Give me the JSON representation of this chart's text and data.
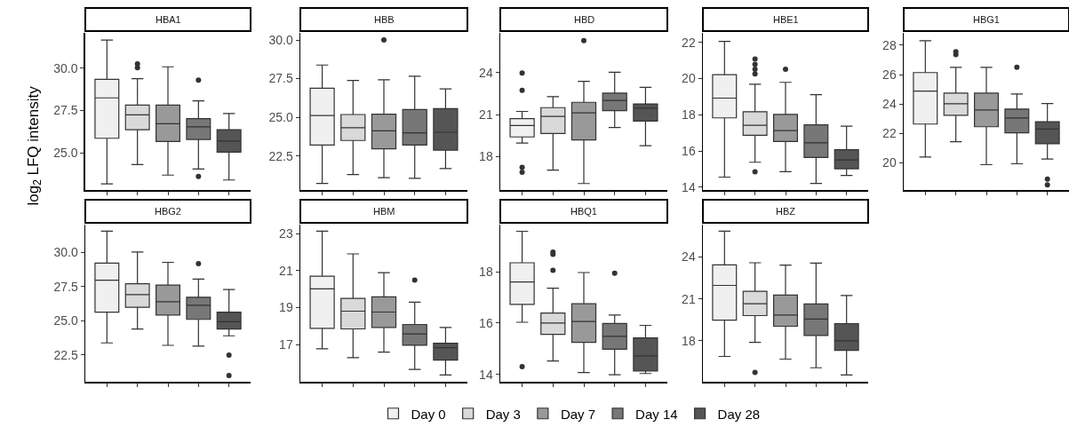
{
  "chart_data": [
    {
      "type": "box",
      "title": "HBA1",
      "ylabel": "log$_{2}$ LFQ intensity",
      "categories": [
        null
      ],
      "ylim": [
        22.8,
        32.1
      ],
      "yticks": [
        {
          "value": 25,
          "label": "25.0"
        },
        {
          "value": 27.5,
          "label": "27.5"
        },
        {
          "value": 30,
          "label": "30.0"
        }
      ],
      "series": [
        {
          "color": "#f0f0f0",
          "boxes": [
            {
              "low": 23.16,
              "q1": 25.86,
              "median": 28.25,
              "q3": 29.35,
              "high": 31.67
            }
          ]
        },
        {
          "color": "#d9d9d9",
          "boxes": [
            {
              "low": 24.3,
              "q1": 26.37,
              "median": 27.25,
              "q3": 27.82,
              "high": 29.39,
              "outliers": [
                30.26,
                30.04
              ]
            }
          ]
        },
        {
          "color": "#999999",
          "boxes": [
            {
              "low": 23.68,
              "q1": 25.67,
              "median": 26.72,
              "q3": 27.82,
              "high": 30.09
            }
          ]
        },
        {
          "color": "#777777",
          "boxes": [
            {
              "low": 24.04,
              "q1": 25.79,
              "median": 26.54,
              "q3": 27.02,
              "high": 28.07,
              "outliers": [
                29.3,
                23.6
              ]
            }
          ]
        },
        {
          "color": "#555555",
          "boxes": [
            {
              "low": 23.39,
              "q1": 25.04,
              "median": 25.7,
              "q3": 26.37,
              "high": 27.32
            }
          ]
        }
      ]
    },
    {
      "type": "box",
      "title": "HBB",
      "categories": [
        null
      ],
      "ylim": [
        20.3,
        30.46
      ],
      "yticks": [
        {
          "value": 22.5,
          "label": "22.5"
        },
        {
          "value": 25,
          "label": "25.0"
        },
        {
          "value": 27.5,
          "label": "27.5"
        },
        {
          "value": 30,
          "label": "30.0"
        }
      ],
      "series": [
        {
          "color": "#f0f0f0",
          "boxes": [
            {
              "low": 20.72,
              "q1": 23.21,
              "median": 25.12,
              "q3": 26.88,
              "high": 28.38
            }
          ]
        },
        {
          "color": "#d9d9d9",
          "boxes": [
            {
              "low": 21.3,
              "q1": 23.5,
              "median": 24.32,
              "q3": 25.18,
              "high": 27.38
            }
          ]
        },
        {
          "color": "#999999",
          "boxes": [
            {
              "low": 21.1,
              "q1": 22.96,
              "median": 24.13,
              "q3": 25.2,
              "high": 27.42,
              "outliers": [
                30.0
              ]
            }
          ]
        },
        {
          "color": "#777777",
          "boxes": [
            {
              "low": 21.05,
              "q1": 23.21,
              "median": 24.0,
              "q3": 25.5,
              "high": 27.65
            }
          ]
        },
        {
          "color": "#555555",
          "boxes": [
            {
              "low": 21.68,
              "q1": 22.87,
              "median": 24.03,
              "q3": 25.56,
              "high": 26.84
            }
          ]
        }
      ]
    },
    {
      "type": "box",
      "title": "HBD",
      "categories": [
        null
      ],
      "ylim": [
        15.63,
        26.83
      ],
      "yticks": [
        18,
        21,
        24
      ],
      "series": [
        {
          "color": "#f0f0f0",
          "boxes": [
            {
              "low": 18.97,
              "q1": 19.41,
              "median": 20.22,
              "q3": 20.71,
              "high": 21.23,
              "outliers": [
                23.96,
                22.74,
                17.25,
                16.89
              ]
            }
          ]
        },
        {
          "color": "#d9d9d9",
          "boxes": [
            {
              "low": 17.04,
              "q1": 19.66,
              "median": 20.87,
              "q3": 21.5,
              "high": 22.28
            }
          ]
        },
        {
          "color": "#999999",
          "boxes": [
            {
              "low": 16.09,
              "q1": 19.2,
              "median": 21.13,
              "q3": 21.88,
              "high": 23.37,
              "outliers": [
                26.27
              ]
            }
          ]
        },
        {
          "color": "#777777",
          "boxes": [
            {
              "low": 20.08,
              "q1": 21.29,
              "median": 22.01,
              "q3": 22.53,
              "high": 24.02
            }
          ]
        },
        {
          "color": "#555555",
          "boxes": [
            {
              "low": 18.78,
              "q1": 20.54,
              "median": 21.46,
              "q3": 21.76,
              "high": 22.95
            }
          ]
        }
      ]
    },
    {
      "type": "box",
      "title": "HBE1",
      "categories": [
        null
      ],
      "ylim": [
        13.85,
        22.52
      ],
      "yticks": [
        14,
        16,
        18,
        20,
        22
      ],
      "series": [
        {
          "color": "#f0f0f0",
          "boxes": [
            {
              "low": 14.56,
              "q1": 17.83,
              "median": 18.92,
              "q3": 20.21,
              "high": 22.05
            }
          ]
        },
        {
          "color": "#d9d9d9",
          "boxes": [
            {
              "low": 15.38,
              "q1": 16.87,
              "median": 17.42,
              "q3": 18.17,
              "high": 19.69,
              "outliers": [
                21.07,
                20.78,
                20.51,
                20.25,
                14.86
              ]
            }
          ]
        },
        {
          "color": "#999999",
          "boxes": [
            {
              "low": 14.86,
              "q1": 16.53,
              "median": 17.13,
              "q3": 18.02,
              "high": 19.79,
              "outliers": [
                20.51
              ]
            }
          ]
        },
        {
          "color": "#777777",
          "boxes": [
            {
              "low": 14.21,
              "q1": 15.64,
              "median": 16.45,
              "q3": 17.44,
              "high": 19.11
            }
          ]
        },
        {
          "color": "#555555",
          "boxes": [
            {
              "low": 14.65,
              "q1": 15.02,
              "median": 15.51,
              "q3": 16.07,
              "high": 17.37
            }
          ]
        }
      ]
    },
    {
      "type": "box",
      "title": "HBG1",
      "categories": [
        null
      ],
      "ylim": [
        18.16,
        28.84
      ],
      "yticks": [
        20,
        22,
        24,
        26,
        28
      ],
      "series": [
        {
          "color": "#f0f0f0",
          "boxes": [
            {
              "low": 20.4,
              "q1": 22.64,
              "median": 24.88,
              "q3": 26.14,
              "high": 28.3
            }
          ]
        },
        {
          "color": "#d9d9d9",
          "boxes": [
            {
              "low": 21.44,
              "q1": 23.24,
              "median": 24.02,
              "q3": 24.74,
              "high": 26.5,
              "outliers": [
                27.56,
                27.36
              ]
            }
          ]
        },
        {
          "color": "#999999",
          "boxes": [
            {
              "low": 19.88,
              "q1": 22.46,
              "median": 23.6,
              "q3": 24.74,
              "high": 26.5
            }
          ]
        },
        {
          "color": "#777777",
          "boxes": [
            {
              "low": 19.94,
              "q1": 22.04,
              "median": 23.06,
              "q3": 23.66,
              "high": 24.68,
              "outliers": [
                26.5
              ]
            }
          ]
        },
        {
          "color": "#555555",
          "boxes": [
            {
              "low": 20.26,
              "q1": 21.3,
              "median": 22.3,
              "q3": 22.8,
              "high": 24.04,
              "outliers": [
                18.9,
                18.5
              ]
            }
          ]
        }
      ]
    },
    {
      "type": "box",
      "title": "HBG2",
      "categories": [
        null
      ],
      "ylim": [
        20.55,
        32.04
      ],
      "yticks": [
        {
          "value": 22.5,
          "label": "22.5"
        },
        {
          "value": 25,
          "label": "25.0"
        },
        {
          "value": 27.5,
          "label": "27.5"
        },
        {
          "value": 30,
          "label": "30.0"
        }
      ],
      "series": [
        {
          "color": "#f0f0f0",
          "boxes": [
            {
              "low": 23.39,
              "q1": 25.64,
              "median": 27.98,
              "q3": 29.22,
              "high": 31.56
            }
          ]
        },
        {
          "color": "#d9d9d9",
          "boxes": [
            {
              "low": 24.41,
              "q1": 25.99,
              "median": 26.92,
              "q3": 27.72,
              "high": 30.04
            }
          ]
        },
        {
          "color": "#999999",
          "boxes": [
            {
              "low": 23.21,
              "q1": 25.43,
              "median": 26.4,
              "q3": 27.62,
              "high": 29.28
            }
          ]
        },
        {
          "color": "#777777",
          "boxes": [
            {
              "low": 23.15,
              "q1": 25.11,
              "median": 26.14,
              "q3": 26.73,
              "high": 28.05,
              "outliers": [
                29.18
              ]
            }
          ]
        },
        {
          "color": "#555555",
          "boxes": [
            {
              "low": 23.91,
              "q1": 24.41,
              "median": 24.94,
              "q3": 25.64,
              "high": 27.29,
              "outliers": [
                22.5,
                21.0
              ]
            }
          ]
        }
      ]
    },
    {
      "type": "box",
      "title": "HBM",
      "categories": [
        null
      ],
      "ylim": [
        15.0,
        23.48
      ],
      "yticks": [
        17,
        19,
        21,
        23
      ],
      "series": [
        {
          "color": "#f0f0f0",
          "boxes": [
            {
              "low": 16.78,
              "q1": 17.88,
              "median": 20.01,
              "q3": 20.7,
              "high": 23.13
            }
          ]
        },
        {
          "color": "#d9d9d9",
          "boxes": [
            {
              "low": 16.3,
              "q1": 17.85,
              "median": 18.81,
              "q3": 19.5,
              "high": 21.9
            }
          ]
        },
        {
          "color": "#999999",
          "boxes": [
            {
              "low": 16.6,
              "q1": 17.93,
              "median": 18.76,
              "q3": 19.58,
              "high": 20.89
            }
          ]
        },
        {
          "color": "#777777",
          "boxes": [
            {
              "low": 15.66,
              "q1": 16.97,
              "median": 17.58,
              "q3": 18.09,
              "high": 19.29,
              "outliers": [
                20.49
              ]
            }
          ]
        },
        {
          "color": "#555555",
          "boxes": [
            {
              "low": 15.37,
              "q1": 16.17,
              "median": 16.84,
              "q3": 17.08,
              "high": 17.93
            }
          ]
        }
      ]
    },
    {
      "type": "box",
      "title": "HBQ1",
      "legend": "bottom",
      "categories": [
        null
      ],
      "ylim": [
        13.71,
        19.84
      ],
      "yticks": [
        14,
        16,
        18
      ],
      "series": [
        {
          "name": "Day 0",
          "color": "#f0f0f0",
          "boxes": [
            {
              "low": 16.03,
              "q1": 16.73,
              "median": 17.6,
              "q3": 18.35,
              "high": 19.58,
              "outliers": [
                14.3
              ]
            }
          ]
        },
        {
          "name": "Day 3",
          "color": "#d9d9d9",
          "boxes": [
            {
              "low": 14.52,
              "q1": 15.56,
              "median": 16.0,
              "q3": 16.39,
              "high": 17.36,
              "outliers": [
                18.77,
                18.68,
                18.06
              ]
            }
          ]
        },
        {
          "name": "Day 7",
          "color": "#999999",
          "boxes": [
            {
              "low": 14.07,
              "q1": 15.25,
              "median": 16.06,
              "q3": 16.75,
              "high": 17.97
            }
          ]
        },
        {
          "name": "Day 14",
          "color": "#777777",
          "boxes": [
            {
              "low": 13.98,
              "q1": 14.98,
              "median": 15.48,
              "q3": 15.98,
              "high": 16.31,
              "outliers": [
                17.94
              ]
            }
          ]
        },
        {
          "name": "Day 28",
          "color": "#555555",
          "boxes": [
            {
              "low": 14.03,
              "q1": 14.13,
              "median": 14.72,
              "q3": 15.42,
              "high": 15.91
            }
          ]
        }
      ]
    },
    {
      "type": "box",
      "title": "HBZ",
      "categories": [
        null
      ],
      "ylim": [
        15.07,
        26.31
      ],
      "yticks": [
        18,
        21,
        24
      ],
      "series": [
        {
          "color": "#f0f0f0",
          "boxes": [
            {
              "low": 16.88,
              "q1": 19.48,
              "median": 21.96,
              "q3": 23.43,
              "high": 25.84
            }
          ]
        },
        {
          "color": "#d9d9d9",
          "boxes": [
            {
              "low": 17.89,
              "q1": 19.8,
              "median": 20.65,
              "q3": 21.54,
              "high": 23.58,
              "outliers": [
                15.73
              ]
            }
          ]
        },
        {
          "color": "#999999",
          "boxes": [
            {
              "low": 16.69,
              "q1": 19.04,
              "median": 19.84,
              "q3": 21.27,
              "high": 23.41
            }
          ]
        },
        {
          "color": "#777777",
          "boxes": [
            {
              "low": 16.07,
              "q1": 18.38,
              "median": 19.55,
              "q3": 20.63,
              "high": 23.55
            }
          ]
        },
        {
          "color": "#555555",
          "boxes": [
            {
              "low": 15.56,
              "q1": 17.32,
              "median": 18.0,
              "q3": 19.23,
              "high": 21.24
            }
          ]
        }
      ]
    }
  ]
}
